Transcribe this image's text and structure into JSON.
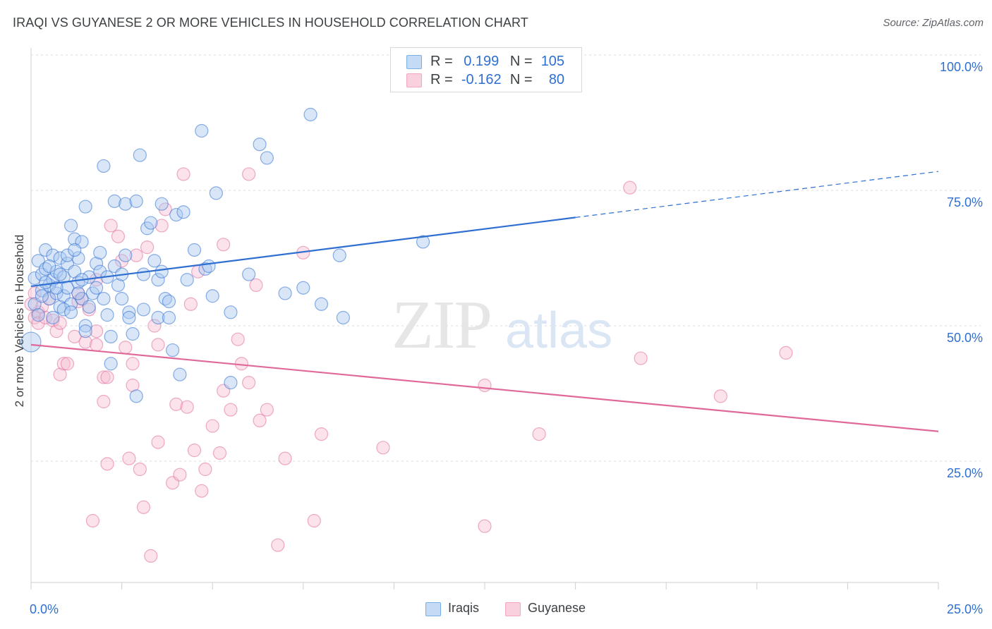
{
  "title": "IRAQI VS GUYANESE 2 OR MORE VEHICLES IN HOUSEHOLD CORRELATION CHART",
  "source": "Source: ZipAtlas.com",
  "watermark": {
    "zip": "ZIP",
    "atlas": "atlas"
  },
  "legend_top": {
    "rows": [
      {
        "r_label": "R =",
        "r_value": "0.199",
        "n_label": "N =",
        "n_value": "105",
        "color": "#7aaee6"
      },
      {
        "r_label": "R =",
        "r_value": "-0.162",
        "n_label": "N =",
        "n_value": "80",
        "color": "#f2a8c0"
      }
    ]
  },
  "legend_bottom": [
    {
      "label": "Iraqis",
      "color": "#7aaee6"
    },
    {
      "label": "Guyanese",
      "color": "#f2a8c0"
    }
  ],
  "chart_data": {
    "type": "scatter",
    "title": "IRAQI VS GUYANESE 2 OR MORE VEHICLES IN HOUSEHOLD CORRELATION CHART",
    "xlabel": "",
    "ylabel": "2 or more Vehicles in Household",
    "xlim": [
      0,
      25
    ],
    "ylim": [
      0,
      105
    ],
    "x_tick_labels": [
      "0.0%",
      "25.0%"
    ],
    "y_tick_labels": [
      "25.0%",
      "50.0%",
      "75.0%",
      "100.0%"
    ],
    "y_ticks": [
      25,
      50,
      75,
      100
    ],
    "grid": true,
    "legend_position": "top-center",
    "series": [
      {
        "name": "Iraqis",
        "color": "#2f6fd1",
        "fill": "#a9c8f0",
        "trend": {
          "x0": 0,
          "y0": 57.3,
          "x1": 15,
          "y1": 70.0,
          "dashed_to_x": 25,
          "dashed_to_y": 78.5
        },
        "points": [
          [
            0.1,
            58.8
          ],
          [
            0.2,
            62.0
          ],
          [
            0.3,
            59.5
          ],
          [
            0.3,
            56.5
          ],
          [
            0.4,
            64.0
          ],
          [
            0.4,
            60.5
          ],
          [
            0.5,
            57.5
          ],
          [
            0.5,
            55.0
          ],
          [
            0.6,
            63.0
          ],
          [
            0.6,
            58.5
          ],
          [
            0.7,
            60.0
          ],
          [
            0.7,
            56.0
          ],
          [
            0.8,
            62.5
          ],
          [
            0.8,
            53.5
          ],
          [
            0.9,
            59.0
          ],
          [
            0.9,
            55.5
          ],
          [
            1.0,
            61.5
          ],
          [
            1.0,
            57.0
          ],
          [
            1.1,
            68.5
          ],
          [
            1.1,
            54.0
          ],
          [
            1.2,
            66.0
          ],
          [
            1.2,
            60.0
          ],
          [
            1.3,
            62.5
          ],
          [
            1.3,
            58.0
          ],
          [
            1.4,
            65.5
          ],
          [
            1.4,
            55.0
          ],
          [
            1.5,
            72.0
          ],
          [
            1.5,
            50.0
          ],
          [
            1.6,
            53.5
          ],
          [
            1.6,
            59.0
          ],
          [
            1.7,
            56.0
          ],
          [
            1.8,
            61.5
          ],
          [
            1.8,
            57.0
          ],
          [
            1.9,
            63.5
          ],
          [
            1.9,
            60.0
          ],
          [
            2.0,
            79.5
          ],
          [
            2.0,
            55.0
          ],
          [
            2.1,
            52.0
          ],
          [
            2.1,
            59.0
          ],
          [
            2.2,
            48.0
          ],
          [
            2.2,
            43.0
          ],
          [
            2.3,
            73.0
          ],
          [
            2.3,
            61.0
          ],
          [
            2.4,
            57.5
          ],
          [
            2.5,
            59.5
          ],
          [
            2.5,
            55.0
          ],
          [
            2.6,
            72.5
          ],
          [
            2.6,
            63.0
          ],
          [
            2.7,
            52.5
          ],
          [
            2.7,
            51.5
          ],
          [
            2.8,
            48.5
          ],
          [
            2.9,
            73.0
          ],
          [
            2.9,
            37.0
          ],
          [
            3.0,
            81.5
          ],
          [
            3.1,
            59.5
          ],
          [
            3.1,
            53.0
          ],
          [
            3.2,
            68.0
          ],
          [
            3.3,
            69.0
          ],
          [
            3.4,
            62.0
          ],
          [
            3.5,
            58.5
          ],
          [
            3.5,
            51.5
          ],
          [
            3.6,
            72.5
          ],
          [
            3.6,
            60.0
          ],
          [
            3.7,
            55.0
          ],
          [
            3.8,
            54.5
          ],
          [
            3.8,
            51.5
          ],
          [
            3.9,
            45.5
          ],
          [
            4.0,
            70.5
          ],
          [
            4.1,
            41.0
          ],
          [
            4.2,
            71.0
          ],
          [
            4.3,
            58.5
          ],
          [
            4.5,
            64.0
          ],
          [
            4.7,
            86.0
          ],
          [
            4.8,
            60.5
          ],
          [
            4.9,
            61.0
          ],
          [
            5.0,
            55.5
          ],
          [
            5.1,
            74.5
          ],
          [
            5.5,
            39.5
          ],
          [
            5.5,
            52.5
          ],
          [
            6.0,
            59.5
          ],
          [
            6.3,
            83.5
          ],
          [
            6.5,
            81.0
          ],
          [
            7.0,
            56.0
          ],
          [
            7.5,
            57.0
          ],
          [
            7.7,
            89.0
          ],
          [
            8.0,
            54.0
          ],
          [
            8.5,
            63.0
          ],
          [
            8.6,
            51.5
          ],
          [
            10.8,
            65.5
          ],
          [
            0.0,
            47.0
          ],
          [
            0.1,
            54.0
          ],
          [
            0.2,
            52.0
          ],
          [
            0.3,
            55.5
          ],
          [
            0.4,
            58.0
          ],
          [
            0.5,
            61.0
          ],
          [
            0.6,
            51.5
          ],
          [
            0.7,
            57.0
          ],
          [
            0.8,
            59.5
          ],
          [
            0.9,
            53.0
          ],
          [
            1.0,
            63.0
          ],
          [
            1.1,
            52.5
          ],
          [
            1.2,
            64.0
          ],
          [
            1.3,
            56.0
          ],
          [
            1.4,
            58.5
          ],
          [
            1.5,
            49.0
          ]
        ]
      },
      {
        "name": "Guyanese",
        "color": "#e0699a",
        "fill": "#f6bfd2",
        "trend": {
          "x0": 0,
          "y0": 46.5,
          "x1": 25,
          "y1": 30.5
        },
        "points": [
          [
            0.1,
            51.5
          ],
          [
            0.1,
            56.0
          ],
          [
            0.2,
            52.5
          ],
          [
            0.2,
            50.5
          ],
          [
            0.3,
            53.5
          ],
          [
            0.4,
            51.5
          ],
          [
            0.5,
            55.0
          ],
          [
            0.6,
            51.0
          ],
          [
            0.7,
            49.0
          ],
          [
            0.8,
            50.5
          ],
          [
            0.8,
            41.0
          ],
          [
            0.9,
            43.0
          ],
          [
            1.0,
            43.0
          ],
          [
            1.2,
            48.0
          ],
          [
            1.3,
            56.0
          ],
          [
            1.3,
            54.5
          ],
          [
            1.4,
            55.0
          ],
          [
            1.5,
            47.0
          ],
          [
            1.6,
            53.0
          ],
          [
            1.7,
            14.0
          ],
          [
            1.8,
            49.0
          ],
          [
            1.8,
            58.5
          ],
          [
            1.8,
            46.5
          ],
          [
            2.0,
            36.0
          ],
          [
            2.0,
            40.5
          ],
          [
            2.1,
            24.5
          ],
          [
            2.1,
            40.5
          ],
          [
            2.2,
            68.5
          ],
          [
            2.4,
            66.5
          ],
          [
            2.5,
            62.0
          ],
          [
            2.6,
            46.0
          ],
          [
            2.7,
            25.5
          ],
          [
            2.8,
            39.0
          ],
          [
            2.8,
            43.0
          ],
          [
            2.9,
            63.0
          ],
          [
            3.0,
            23.5
          ],
          [
            3.1,
            16.5
          ],
          [
            3.2,
            64.5
          ],
          [
            3.3,
            7.5
          ],
          [
            3.4,
            50.0
          ],
          [
            3.5,
            46.5
          ],
          [
            3.5,
            28.5
          ],
          [
            3.6,
            68.5
          ],
          [
            3.7,
            71.5
          ],
          [
            3.9,
            21.0
          ],
          [
            4.0,
            35.5
          ],
          [
            4.1,
            22.5
          ],
          [
            4.2,
            78.0
          ],
          [
            4.3,
            35.0
          ],
          [
            4.4,
            54.0
          ],
          [
            4.5,
            27.0
          ],
          [
            4.6,
            60.0
          ],
          [
            4.7,
            19.5
          ],
          [
            4.8,
            23.5
          ],
          [
            5.0,
            31.5
          ],
          [
            5.2,
            26.5
          ],
          [
            5.3,
            65.0
          ],
          [
            5.3,
            38.0
          ],
          [
            5.5,
            34.5
          ],
          [
            5.7,
            47.5
          ],
          [
            5.8,
            43.0
          ],
          [
            6.0,
            78.0
          ],
          [
            6.0,
            39.5
          ],
          [
            6.2,
            57.5
          ],
          [
            6.3,
            32.5
          ],
          [
            6.5,
            34.5
          ],
          [
            6.8,
            9.5
          ],
          [
            7.0,
            25.5
          ],
          [
            7.5,
            63.5
          ],
          [
            7.8,
            14.0
          ],
          [
            8.0,
            30.0
          ],
          [
            9.7,
            27.5
          ],
          [
            12.5,
            13.0
          ],
          [
            12.5,
            39.0
          ],
          [
            14.0,
            30.0
          ],
          [
            16.5,
            75.5
          ],
          [
            16.8,
            44.0
          ],
          [
            19.0,
            37.0
          ],
          [
            20.8,
            45.0
          ],
          [
            0.0,
            54.0
          ]
        ]
      }
    ]
  }
}
